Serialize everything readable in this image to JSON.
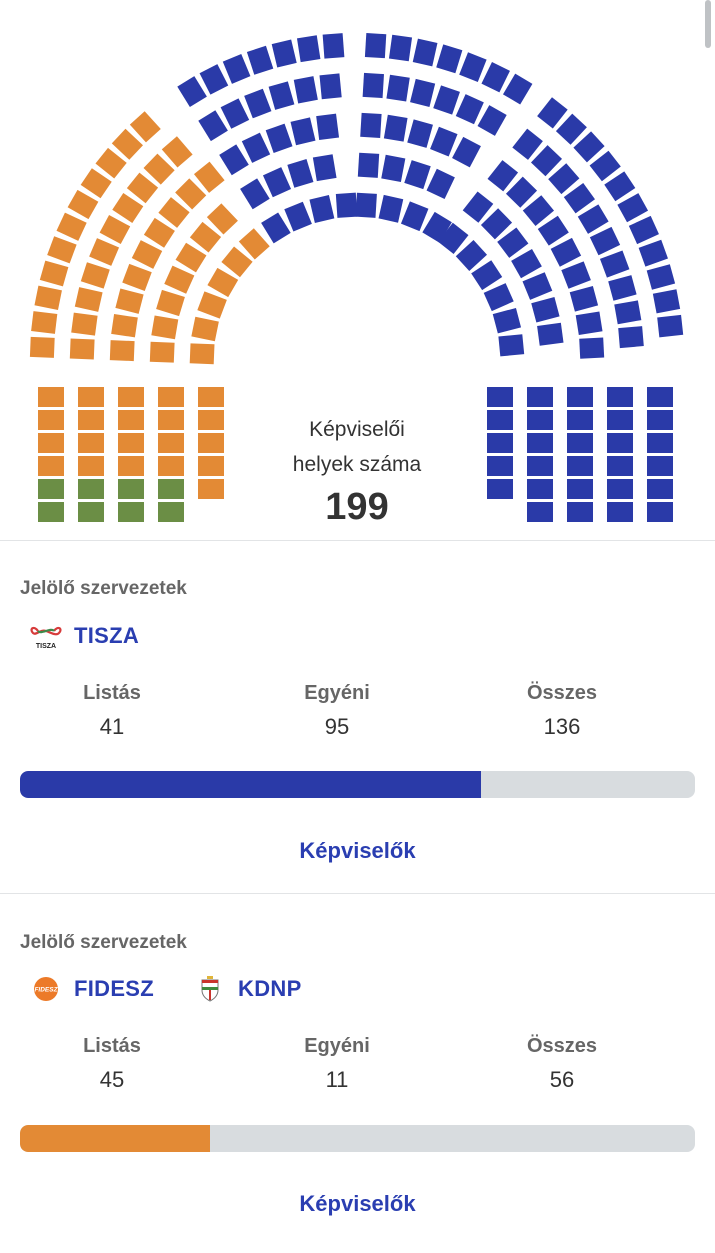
{
  "parliament": {
    "caption_line1": "Képviselői",
    "caption_line2": "helyek száma",
    "total": "199",
    "colors": {
      "tisza": "#2a3aa8",
      "fidesz": "#e38a35",
      "other": "#6b8e45"
    }
  },
  "cards": [
    {
      "org_label": "Jelölő szervezetek",
      "parties": [
        {
          "name": "TISZA",
          "logo_icon": "tisza-logo-icon",
          "logo_text": "TISZA"
        }
      ],
      "stats": [
        {
          "label": "Listás",
          "value": "41"
        },
        {
          "label": "Egyéni",
          "value": "95"
        },
        {
          "label": "Összes",
          "value": "136"
        }
      ],
      "share_of_seats": 0.683,
      "bar_color": "#2a3aa8",
      "link_label": "Képviselők"
    },
    {
      "org_label": "Jelölő szervezetek",
      "parties": [
        {
          "name": "FIDESZ",
          "logo_icon": "fidesz-logo-icon",
          "logo_text": "FIDESZ"
        },
        {
          "name": "KDNP",
          "logo_icon": "kdnp-logo-icon"
        }
      ],
      "stats": [
        {
          "label": "Listás",
          "value": "45"
        },
        {
          "label": "Egyéni",
          "value": "11"
        },
        {
          "label": "Összes",
          "value": "56"
        }
      ],
      "share_of_seats": 0.281,
      "bar_color": "#e38a35",
      "link_label": "Képviselők"
    }
  ]
}
